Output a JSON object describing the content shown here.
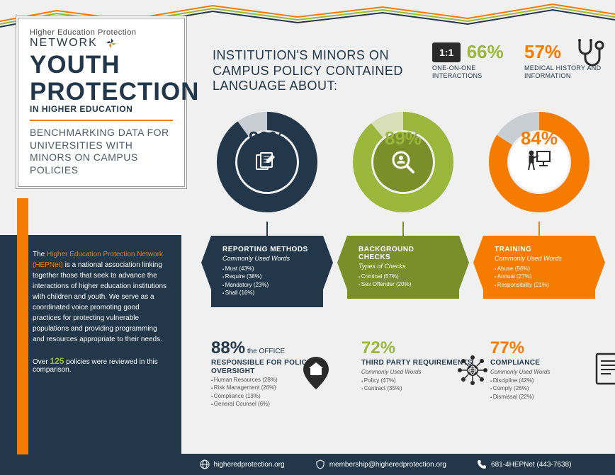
{
  "org": {
    "line1": "Higher Education Protection",
    "line2": "NETWORK"
  },
  "title": {
    "main1": "YOUTH",
    "main2": "PROTECTION",
    "sub": "IN HIGHER EDUCATION"
  },
  "subtitle": "BENCHMARKING DATA FOR UNIVERSITIES WITH MINORS ON CAMPUS POLICIES",
  "description": {
    "highlight": "Higher Education Protection Network (HEPNet)",
    "prefix": "The ",
    "body": " is a national association linking together those that seek to advance the interactions of higher education institutions with children and youth. We serve as a coordinated voice promoting good practices for protecting vulnerable populations and providing programming and resources appropriate to their needs."
  },
  "reviewed": {
    "prefix": "Over ",
    "count": "125",
    "suffix": " policies were reviewed in this comparison."
  },
  "section_heading": "INSTITUTION'S MINORS ON CAMPUS POLICY CONTAINED LANGUAGE ABOUT:",
  "top_stats": {
    "ratio": "1:1",
    "interactions": {
      "pct": "66%",
      "label": "ONE-ON-ONE INTERACTIONS",
      "color": "#9bb83c"
    },
    "medical": {
      "pct": "57%",
      "label": "MEDICAL HISTORY AND INFORMATION",
      "color": "#f57c00"
    }
  },
  "donuts": [
    {
      "pct": "90%",
      "value": 90,
      "color": "#22384a",
      "bg": "#c9ced4",
      "title": "REPORTING METHODS",
      "sub": "Commonly Used Words",
      "items": [
        "Must (43%)",
        "Require (38%)",
        "Mandatory (23%)",
        "Shall (16%)"
      ],
      "icon": "documents"
    },
    {
      "pct": "89%",
      "value": 89,
      "color": "#9bb83c",
      "bg": "#d8dfb8",
      "title": "BACKGROUND CHECKS",
      "sub": "Types of Checks",
      "items": [
        "Criminal (57%)",
        "Sex Offender (20%)"
      ],
      "icon": "magnify-person"
    },
    {
      "pct": "84%",
      "value": 84,
      "color": "#f57c00",
      "bg": "#f9d2b0",
      "title": "TRAINING",
      "sub": "Commonly Used Words",
      "items": [
        "Abuse (56%)",
        "Annual (27%)",
        "Responsibility (21%)"
      ],
      "icon": "presenter"
    }
  ],
  "bottom_stats": [
    {
      "pct": "88%",
      "suffix": " the OFFICE",
      "title": "RESPONSIBLE FOR POLICY OVERSIGHT",
      "sub": "",
      "items": [
        "Human Resources (28%)",
        "Risk Management (26%)",
        "Compliance (13%)",
        "General Counsel (6%)"
      ],
      "color": "#22384a",
      "icon": "home-pin"
    },
    {
      "pct": "72%",
      "suffix": "",
      "title": "THIRD PARTY REQUIREMENTS",
      "sub": "Commonly Used Words",
      "items": [
        "Policy (47%)",
        "Contract (35%)"
      ],
      "color": "#9bb83c",
      "icon": "network"
    },
    {
      "pct": "77%",
      "suffix": "",
      "title": "COMPLIANCE",
      "sub": "Commonly Used Words",
      "items": [
        "Discipline (42%)",
        "Comply (26%)",
        "Dismissal (22%)"
      ],
      "color": "#f57c00",
      "icon": "certificate"
    }
  ],
  "footer": {
    "web": "higheredprotection.org",
    "email": "membership@higheredprotection.org",
    "phone": "681-4HEPNet (443-7638)"
  },
  "colors": {
    "navy": "#22384a",
    "olive": "#9bb83c",
    "orange": "#f57c00",
    "grey": "#c9ced4"
  }
}
